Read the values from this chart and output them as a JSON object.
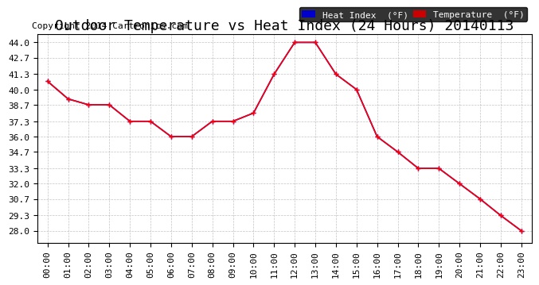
{
  "title": "Outdoor Temperature vs Heat Index (24 Hours) 20140113",
  "copyright": "Copyright 2014 Cartronics.com",
  "hours": [
    "00:00",
    "01:00",
    "02:00",
    "03:00",
    "04:00",
    "05:00",
    "06:00",
    "07:00",
    "08:00",
    "09:00",
    "10:00",
    "11:00",
    "12:00",
    "13:00",
    "14:00",
    "15:00",
    "16:00",
    "17:00",
    "18:00",
    "19:00",
    "20:00",
    "21:00",
    "22:00",
    "23:00"
  ],
  "temperature": [
    40.7,
    39.2,
    38.7,
    38.7,
    37.3,
    37.3,
    36.0,
    36.0,
    37.3,
    37.3,
    38.0,
    41.3,
    44.0,
    44.0,
    41.3,
    40.0,
    36.0,
    34.7,
    33.3,
    33.3,
    32.0,
    30.7,
    29.3,
    28.0
  ],
  "heat_index": [
    40.7,
    39.2,
    38.7,
    38.7,
    37.3,
    37.3,
    36.0,
    36.0,
    37.3,
    37.3,
    38.0,
    41.3,
    44.0,
    44.0,
    41.3,
    40.0,
    36.0,
    34.7,
    33.3,
    33.3,
    32.0,
    30.7,
    29.3,
    28.0
  ],
  "temp_color": "#ff0000",
  "heat_color": "#0000ff",
  "ylim_min": 27.0,
  "ylim_max": 44.7,
  "yticks": [
    28.0,
    29.3,
    30.7,
    32.0,
    33.3,
    34.7,
    36.0,
    37.3,
    38.7,
    40.0,
    41.3,
    42.7,
    44.0
  ],
  "background_color": "#ffffff",
  "plot_bg_color": "#ffffff",
  "grid_color": "#aaaaaa",
  "legend_heat_bg": "#0000cc",
  "legend_temp_bg": "#cc0000",
  "legend_text_color": "#ffffff",
  "title_fontsize": 13,
  "copyright_fontsize": 8,
  "tick_fontsize": 8
}
